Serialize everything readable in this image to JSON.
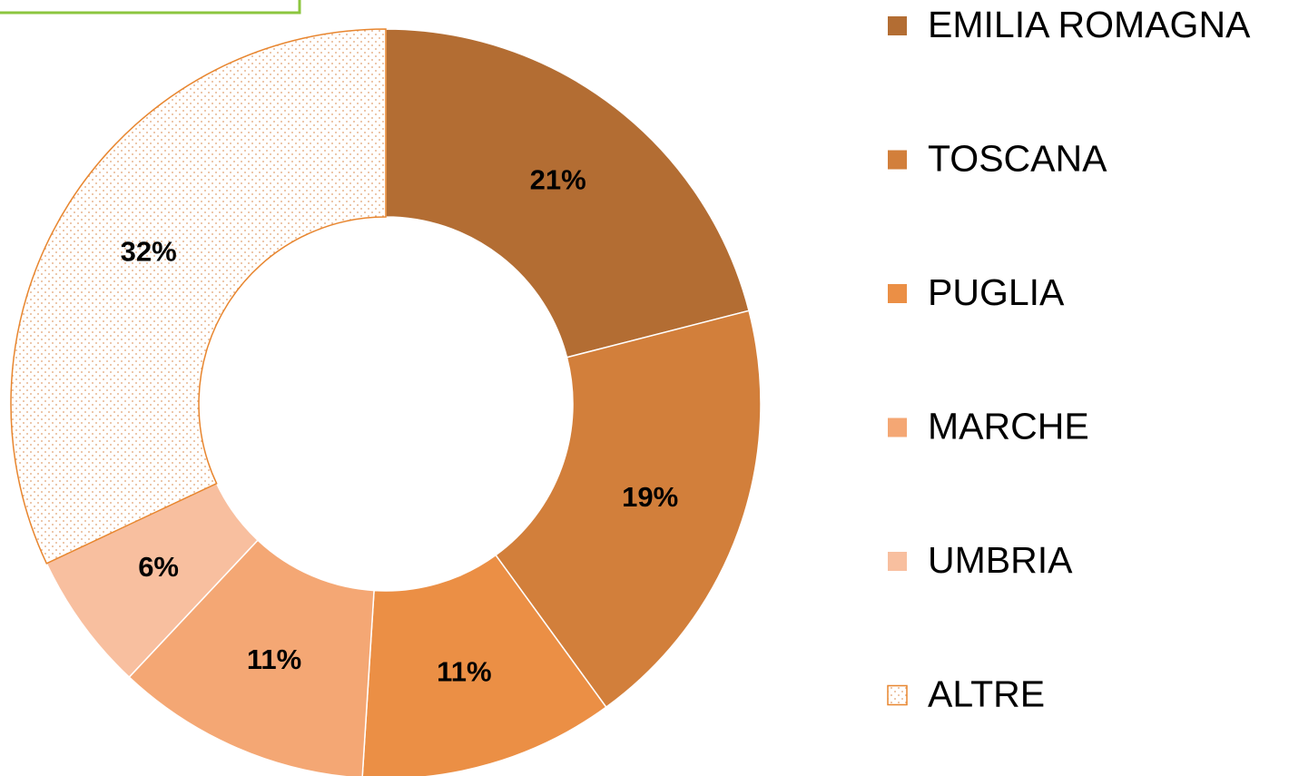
{
  "chart_data": {
    "type": "donut",
    "categories": [
      "EMILIA ROMAGNA",
      "TOSCANA",
      "PUGLIA",
      "MARCHE",
      "UMBRIA",
      "ALTRE"
    ],
    "values": [
      21,
      19,
      11,
      11,
      6,
      32
    ],
    "value_labels": [
      "21%",
      "19%",
      "11%",
      "11%",
      "6%",
      "32%"
    ],
    "colors": [
      "#b36d33",
      "#d27f3b",
      "#eb8f45",
      "#f4a774",
      "#f8bf9f",
      "pattern"
    ],
    "legend": "right"
  }
}
